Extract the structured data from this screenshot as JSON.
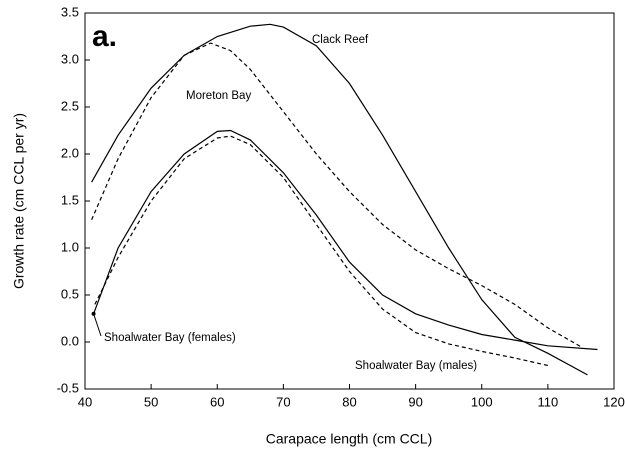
{
  "chart_data": {
    "type": "line",
    "panel_label": "a.",
    "x_label": "Carapace length (cm CCL)",
    "y_label": "Growth rate (cm CCL per yr)",
    "xlim": [
      40,
      120
    ],
    "xticks": [
      40,
      50,
      60,
      70,
      80,
      90,
      100,
      110,
      120
    ],
    "ylim": [
      -0.5,
      3.5
    ],
    "yticks": [
      -0.5,
      {
        "value": 0,
        "label": "0.0"
      },
      0.5,
      {
        "value": 1,
        "label": "1.0"
      },
      1.5,
      {
        "value": 2,
        "label": "2.0"
      },
      2.5,
      {
        "value": 3,
        "label": "3.0"
      },
      3.5
    ],
    "grid": false,
    "series": [
      {
        "name": "Clack Reef",
        "color": "#000000",
        "dash": false,
        "x": [
          41,
          45,
          50,
          55,
          60,
          65,
          68,
          70,
          75,
          80,
          85,
          90,
          95,
          100,
          105,
          110,
          116
        ],
        "values": [
          1.7,
          2.2,
          2.7,
          3.05,
          3.25,
          3.36,
          3.38,
          3.35,
          3.15,
          2.75,
          2.2,
          1.6,
          1.0,
          0.45,
          0.05,
          -0.12,
          -0.35
        ]
      },
      {
        "name": "Moreton Bay",
        "color": "#000000",
        "dash": true,
        "x": [
          41,
          45,
          50,
          55,
          59,
          62,
          65,
          70,
          75,
          80,
          85,
          90,
          95,
          100,
          105,
          110,
          115
        ],
        "values": [
          1.3,
          1.95,
          2.6,
          3.05,
          3.18,
          3.1,
          2.9,
          2.45,
          2.0,
          1.6,
          1.25,
          0.98,
          0.78,
          0.6,
          0.4,
          0.15,
          -0.05
        ]
      },
      {
        "name": "Shoalwater Bay (females)",
        "color": "#000000",
        "dash": false,
        "x": [
          41.3,
          45,
          50,
          55,
          60,
          62,
          65,
          70,
          75,
          80,
          85,
          90,
          95,
          100,
          105,
          110,
          117.5
        ],
        "values": [
          0.3,
          1.0,
          1.6,
          2.0,
          2.24,
          2.25,
          2.15,
          1.8,
          1.35,
          0.85,
          0.5,
          0.3,
          0.18,
          0.08,
          0.02,
          -0.04,
          -0.08
        ]
      },
      {
        "name": "Shoalwater Bay (males)",
        "color": "#000000",
        "dash": true,
        "x": [
          41.5,
          45,
          50,
          55,
          60,
          62,
          65,
          70,
          75,
          80,
          85,
          90,
          95,
          100,
          105,
          110
        ],
        "values": [
          0.4,
          0.9,
          1.5,
          1.95,
          2.17,
          2.19,
          2.1,
          1.75,
          1.25,
          0.75,
          0.35,
          0.1,
          -0.02,
          -0.1,
          -0.17,
          -0.25
        ]
      }
    ]
  }
}
